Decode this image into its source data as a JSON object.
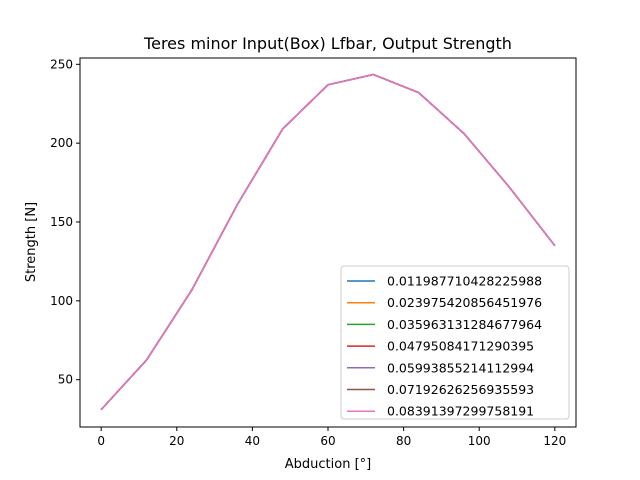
{
  "chart_data": {
    "type": "line",
    "title": "Teres minor Input(Box) Lfbar, Output Strength",
    "xlabel": "Abduction [°]",
    "ylabel": "Strength [N]",
    "xlim": [
      -5.6,
      125.6
    ],
    "ylim": [
      20,
      254
    ],
    "x_ticks": [
      0,
      20,
      40,
      60,
      80,
      100,
      120
    ],
    "y_ticks": [
      50,
      100,
      150,
      200,
      250
    ],
    "grid": false,
    "legend_position": "lower right",
    "x": [
      0,
      12,
      24,
      36,
      48,
      60,
      72,
      84,
      96,
      108,
      120
    ],
    "series": [
      {
        "name": "0.011987710428225988",
        "color": "#1f77b4",
        "values": [
          31,
          62.5,
          107,
          161,
          209,
          237,
          243.5,
          232,
          206,
          172,
          135
        ]
      },
      {
        "name": "0.023975420856451976",
        "color": "#ff7f0e",
        "values": [
          31,
          62.5,
          107,
          161,
          209,
          237,
          243.5,
          232,
          206,
          172,
          135
        ]
      },
      {
        "name": "0.035963131284677964",
        "color": "#2ca02c",
        "values": [
          31,
          62.5,
          107,
          161,
          209,
          237,
          243.5,
          232,
          206,
          172,
          135
        ]
      },
      {
        "name": "0.04795084171290395",
        "color": "#d62728",
        "values": [
          31,
          62.5,
          107,
          161,
          209,
          237,
          243.5,
          232,
          206,
          172,
          135
        ]
      },
      {
        "name": "0.05993855214112994",
        "color": "#9467bd",
        "values": [
          31,
          62.5,
          107,
          161,
          209,
          237,
          243.5,
          232,
          206,
          172,
          135
        ]
      },
      {
        "name": "0.07192626256935593",
        "color": "#8c564b",
        "values": [
          31,
          62.5,
          107,
          161,
          209,
          237,
          243.5,
          232,
          206,
          172,
          135
        ]
      },
      {
        "name": "0.08391397299758191",
        "color": "#e377c2",
        "values": [
          31,
          62.5,
          107,
          161,
          209,
          237,
          243.5,
          232,
          206,
          172,
          135
        ]
      }
    ]
  }
}
